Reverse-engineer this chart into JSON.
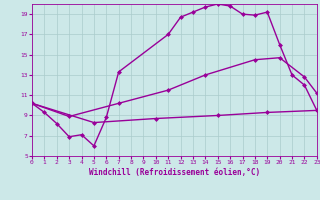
{
  "xlabel": "Windchill (Refroidissement éolien,°C)",
  "background_color": "#cce8e8",
  "grid_color": "#aacccc",
  "line_color": "#990099",
  "xmin": 0,
  "xmax": 23,
  "ymin": 5,
  "ymax": 20,
  "yticks": [
    5,
    7,
    9,
    11,
    13,
    15,
    17,
    19
  ],
  "xticks": [
    0,
    1,
    2,
    3,
    4,
    5,
    6,
    7,
    8,
    9,
    10,
    11,
    12,
    13,
    14,
    15,
    16,
    17,
    18,
    19,
    20,
    21,
    22,
    23
  ],
  "line1_x": [
    0,
    1,
    2,
    3,
    4,
    5,
    6,
    7,
    11,
    12,
    13,
    14,
    15,
    16,
    17,
    18,
    19,
    20,
    21,
    22,
    23
  ],
  "line1_y": [
    10.2,
    9.3,
    8.2,
    6.9,
    7.1,
    6.0,
    8.8,
    13.3,
    17.0,
    18.7,
    19.2,
    19.7,
    20.0,
    19.8,
    19.0,
    18.9,
    19.2,
    16.0,
    13.0,
    12.0,
    9.5
  ],
  "line2_x": [
    0,
    3,
    7,
    11,
    14,
    18,
    20,
    22,
    23
  ],
  "line2_y": [
    10.2,
    8.9,
    10.2,
    11.5,
    13.0,
    14.5,
    14.7,
    12.8,
    11.2
  ],
  "line3_x": [
    0,
    5,
    10,
    15,
    19,
    23
  ],
  "line3_y": [
    10.2,
    8.3,
    8.7,
    9.0,
    9.3,
    9.5
  ],
  "marker": "D",
  "markersize": 2.5,
  "linewidth": 1.0
}
